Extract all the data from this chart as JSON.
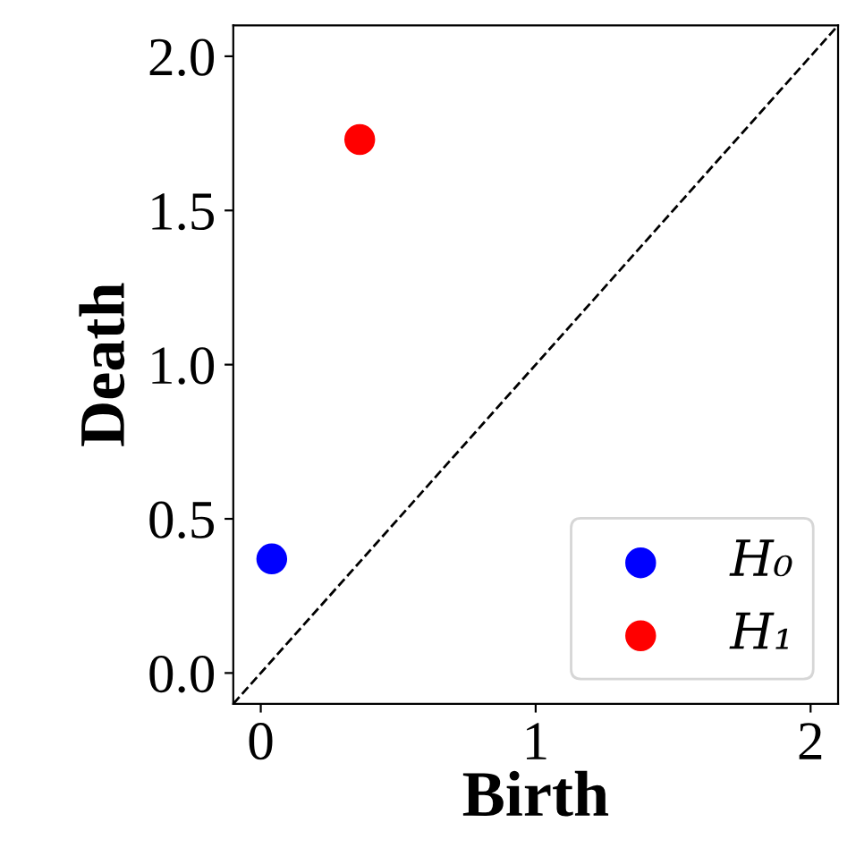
{
  "chart_data": {
    "type": "scatter",
    "xlabel": "Birth",
    "ylabel": "Death",
    "xlim": [
      -0.1,
      2.1
    ],
    "ylim": [
      -0.1,
      2.1
    ],
    "xticks": [
      0,
      1,
      2
    ],
    "yticks": [
      {
        "value": 0,
        "label": "0.0"
      },
      0.5,
      {
        "value": 1,
        "label": "1.0"
      },
      1.5,
      {
        "value": 2,
        "label": "2.0"
      }
    ],
    "series": [
      {
        "type": "line",
        "color": "#000000",
        "line_style": "dashed",
        "marker": "none",
        "x": [
          -0.1,
          2.1
        ],
        "values": [
          -0.1,
          2.1
        ]
      },
      {
        "name": "H₀",
        "color": "#0000ff",
        "marker": "circle",
        "x": [
          0.04
        ],
        "values": [
          0.37
        ]
      },
      {
        "name": "H₁",
        "color": "#ff0000",
        "marker": "circle",
        "x": [
          0.36
        ],
        "values": [
          1.73
        ]
      }
    ],
    "legend": "lower right",
    "grid": false
  }
}
